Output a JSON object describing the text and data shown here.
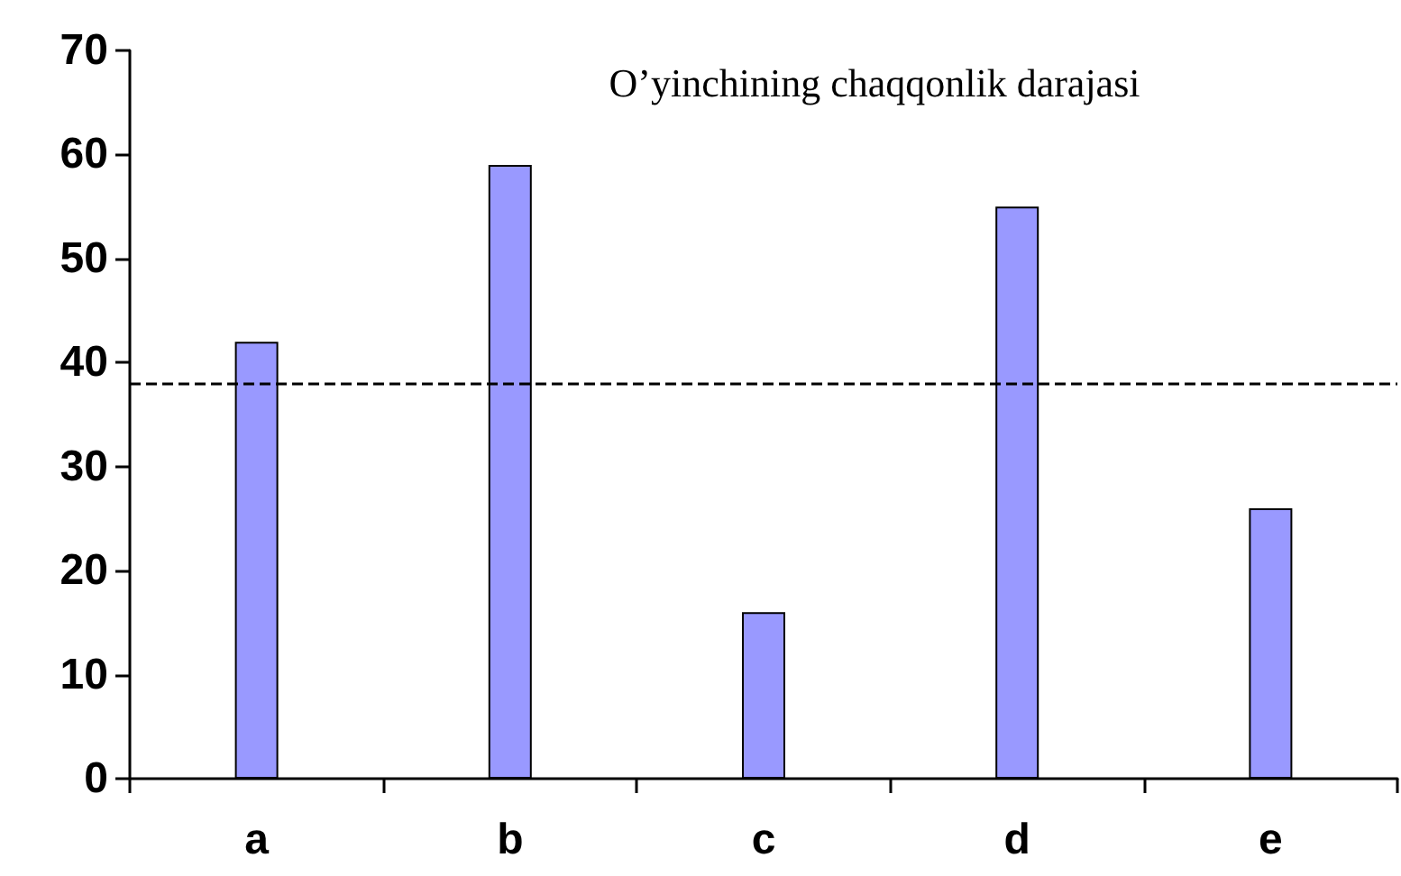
{
  "chart_data": {
    "type": "bar",
    "title": "O’yinchining chaqqonlik darajasi",
    "categories": [
      "a",
      "b",
      "c",
      "d",
      "e"
    ],
    "values": [
      42,
      59,
      16,
      55,
      26
    ],
    "color": "#9999ff",
    "ylim": [
      0,
      70
    ],
    "yticks": [
      0,
      10,
      20,
      30,
      40,
      50,
      60,
      70
    ],
    "grid": false,
    "ref_lines": [
      {
        "axis": "y",
        "value": 38,
        "color": "#000000",
        "line_style": "dashed"
      }
    ]
  }
}
